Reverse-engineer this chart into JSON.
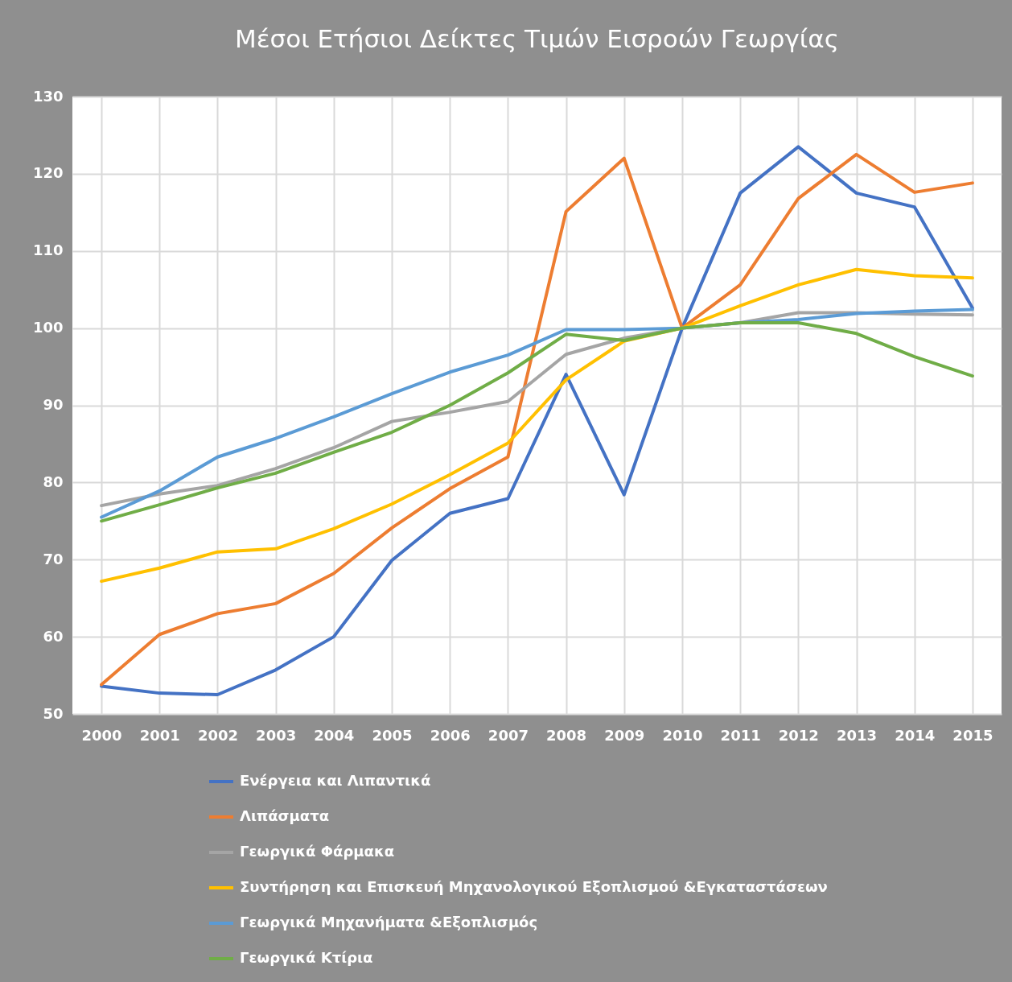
{
  "chart_data": {
    "type": "line",
    "title": "Μέσοι Ετήσιοι Δείκτες Τιμών Εισροών Γεωργίας",
    "categories": [
      "2000",
      "2001",
      "2002",
      "2003",
      "2004",
      "2005",
      "2006",
      "2007",
      "2008",
      "2009",
      "2010",
      "2011",
      "2012",
      "2013",
      "2014",
      "2015"
    ],
    "series": [
      {
        "name": "Ενέργεια και Λιπαντικά",
        "color": "#4472c4",
        "values": [
          53.6,
          52.7,
          52.5,
          55.7,
          60.0,
          69.9,
          76.0,
          77.9,
          94.0,
          78.4,
          100,
          117.5,
          123.5,
          117.5,
          115.7,
          102.6
        ]
      },
      {
        "name": "Λιπάσματα",
        "color": "#ed7d31",
        "values": [
          53.8,
          60.3,
          63.0,
          64.3,
          68.2,
          74.1,
          79.2,
          83.3,
          115.1,
          122.0,
          100,
          105.6,
          116.8,
          122.5,
          117.6,
          118.8
        ]
      },
      {
        "name": "Γεωργικά Φάρμακα",
        "color": "#a5a5a5",
        "values": [
          77.0,
          78.5,
          79.6,
          81.8,
          84.5,
          87.9,
          89.1,
          90.5,
          96.6,
          98.7,
          100,
          100.7,
          102.0,
          102.0,
          101.8,
          101.7
        ]
      },
      {
        "name": "Συντήρηση και Επισκευή Μηχανολογικού Εξοπλισμού  &Εγκαταστάσεων",
        "color": "#ffc000",
        "values": [
          67.2,
          68.9,
          71.0,
          71.4,
          74.0,
          77.2,
          81.0,
          85.1,
          93.3,
          98.3,
          100,
          102.9,
          105.6,
          107.6,
          106.8,
          106.5
        ]
      },
      {
        "name": "Γεωργικά Μηχανήματα &Εξοπλισμός",
        "color": "#5b9bd5",
        "values": [
          75.5,
          78.9,
          83.3,
          85.7,
          88.5,
          91.5,
          94.3,
          96.5,
          99.8,
          99.8,
          100,
          100.7,
          101.1,
          101.9,
          102.2,
          102.4
        ]
      },
      {
        "name": "Γεωργικά Κτίρια",
        "color": "#70ad47",
        "values": [
          75.0,
          77.1,
          79.3,
          81.2,
          83.9,
          86.5,
          90.0,
          94.2,
          99.2,
          98.4,
          100,
          100.7,
          100.7,
          99.3,
          96.3,
          93.8
        ]
      }
    ],
    "ylim": [
      50,
      130
    ],
    "yticks": [
      50,
      60,
      70,
      80,
      90,
      100,
      110,
      120,
      130
    ],
    "grid": true,
    "legend": "bottom",
    "marker": "none",
    "line_style": "solid"
  }
}
